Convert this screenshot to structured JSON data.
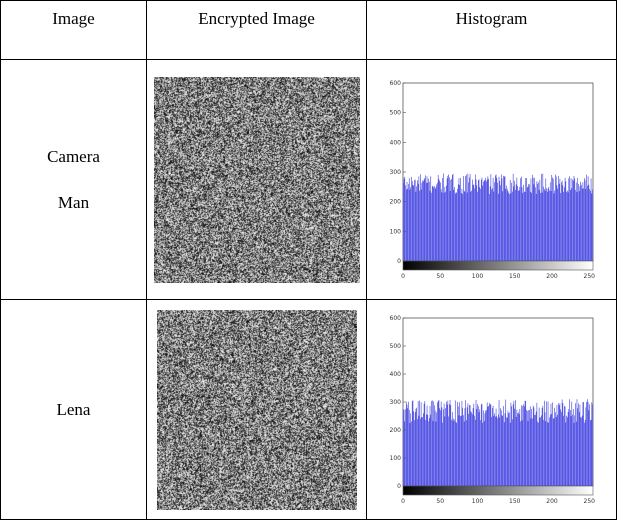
{
  "table": {
    "headers": [
      "Image",
      "Encrypted Image",
      "Histogram"
    ],
    "rows": [
      {
        "label_line1": "Camera",
        "label_line2": "Man"
      },
      {
        "label_line1": "Lena",
        "label_line2": ""
      }
    ]
  },
  "chart_data": [
    {
      "type": "bar",
      "title": "",
      "xlabel": "",
      "ylabel": "",
      "xlim": [
        0,
        255
      ],
      "ylim": [
        0,
        600
      ],
      "x_ticks": [
        0,
        50,
        100,
        150,
        200,
        250
      ],
      "y_ticks": [
        0,
        100,
        200,
        300,
        400,
        500,
        600
      ],
      "bar_color": "#3a3ae0",
      "bins": 256,
      "values_summary": {
        "approx_mean": 258,
        "approx_min": 225,
        "approx_max": 295
      },
      "colorbar": "grayscale 0-255"
    },
    {
      "type": "bar",
      "title": "",
      "xlabel": "",
      "ylabel": "",
      "xlim": [
        0,
        255
      ],
      "ylim": [
        0,
        600
      ],
      "x_ticks": [
        0,
        50,
        100,
        150,
        200,
        250
      ],
      "y_ticks": [
        0,
        100,
        200,
        300,
        400,
        500,
        600
      ],
      "bar_color": "#3a3ae0",
      "bins": 256,
      "values_summary": {
        "approx_mean": 258,
        "approx_min": 225,
        "approx_max": 310
      },
      "colorbar": "grayscale 0-255"
    }
  ]
}
